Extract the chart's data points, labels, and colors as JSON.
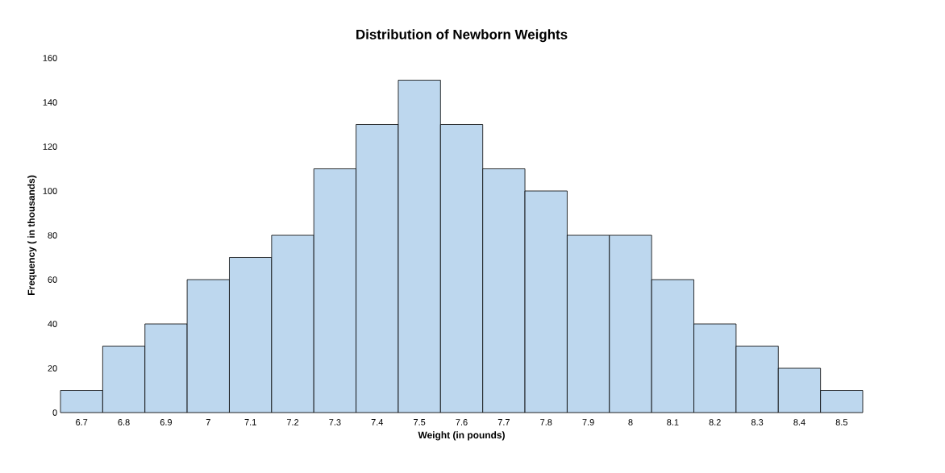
{
  "chart_data": {
    "type": "bar",
    "title": "Distribution of Newborn Weights",
    "xlabel": "Weight (in pounds)",
    "ylabel": "Frequency ( in thousands)",
    "categories": [
      "6.7",
      "6.8",
      "6.9",
      "7",
      "7.1",
      "7.2",
      "7.3",
      "7.4",
      "7.5",
      "7.6",
      "7.7",
      "7.8",
      "7.9",
      "8",
      "8.1",
      "8.2",
      "8.3",
      "8.4",
      "8.5"
    ],
    "values": [
      10,
      30,
      40,
      60,
      70,
      80,
      110,
      130,
      150,
      130,
      110,
      100,
      80,
      80,
      60,
      40,
      30,
      20,
      10
    ],
    "color": "#bdd7ee",
    "ylim": [
      0,
      160
    ],
    "yticks": [
      0,
      20,
      40,
      60,
      80,
      100,
      120,
      140,
      160
    ]
  }
}
